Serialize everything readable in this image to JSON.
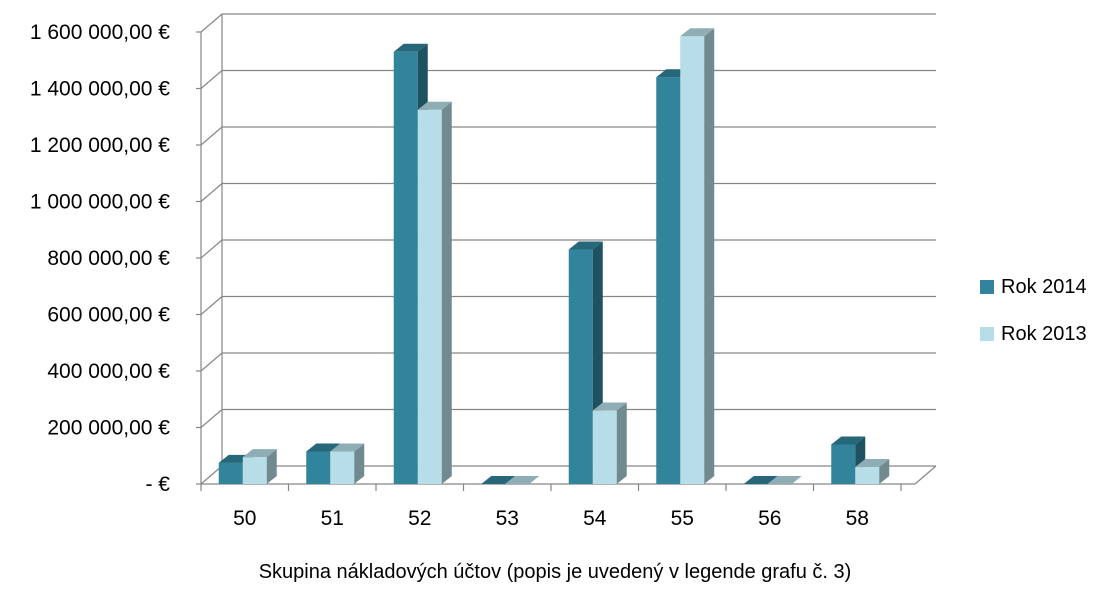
{
  "chart_data": {
    "type": "bar",
    "title": "",
    "xlabel": "Skupina nákladových účtov (popis je uvedený v legende grafu č. 3)",
    "ylabel": "",
    "categories": [
      "50",
      "51",
      "52",
      "53",
      "54",
      "55",
      "56",
      "58"
    ],
    "y_tick_labels": [
      "-  €",
      "200 000,00 €",
      "400 000,00 €",
      "600 000,00 €",
      "800 000,00 €",
      "1 000 000,00 €",
      "1 200 000,00 €",
      "1 400 000,00 €",
      "1 600 000,00 €"
    ],
    "y_tick_values": [
      0,
      200000,
      400000,
      600000,
      800000,
      1000000,
      1200000,
      1400000,
      1600000
    ],
    "ylim": [
      0,
      1600000
    ],
    "grid": true,
    "legend_position": "right",
    "series": [
      {
        "name": "Rok 2014",
        "color": "#31849b",
        "values": [
          75000,
          115000,
          1530000,
          0,
          830000,
          1440000,
          0,
          140000
        ]
      },
      {
        "name": "Rok 2013",
        "color": "#b7dee8",
        "values": [
          95000,
          115000,
          1325000,
          0,
          260000,
          1585000,
          0,
          60000
        ]
      }
    ]
  }
}
